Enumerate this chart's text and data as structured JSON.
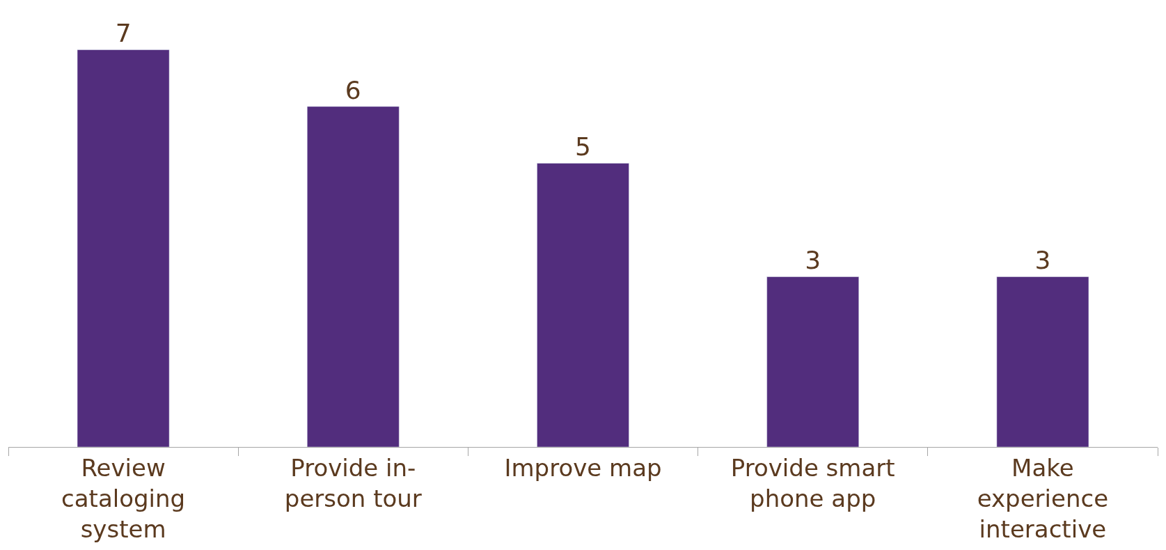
{
  "chart_data": {
    "type": "bar",
    "categories": [
      "Review cataloging system",
      "Provide in-person tour",
      "Improve map",
      "Provide smart phone app",
      "Make experience interactive"
    ],
    "values": [
      7,
      6,
      5,
      3,
      3
    ],
    "color": "#522d7d",
    "data_labels": true,
    "legend": false
  }
}
